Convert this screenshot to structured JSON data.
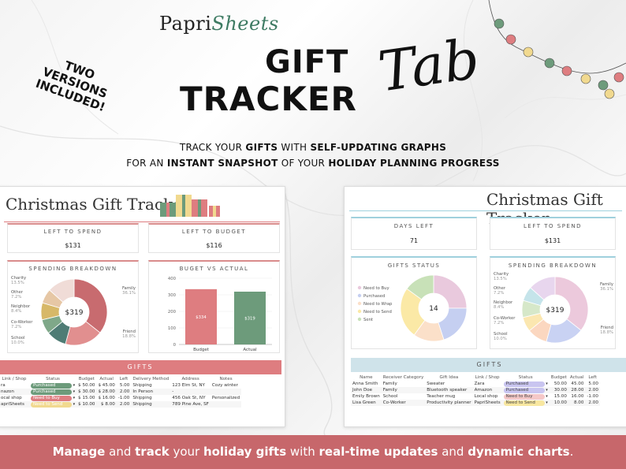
{
  "brand": {
    "part1": "Papri",
    "part2": "Sheets"
  },
  "hero": {
    "title_line1": "GIFT",
    "title_line2": "TRACKER",
    "title_script": "Tab",
    "badge": [
      "TWO",
      "VERSIONS",
      "INCLUDED!"
    ]
  },
  "subtitle": {
    "line1": [
      {
        "t": "TRACK YOUR ",
        "b": false
      },
      {
        "t": "GIFTS",
        "b": true
      },
      {
        "t": " WITH ",
        "b": false
      },
      {
        "t": "SELF-UPDATING GRAPHS",
        "b": true
      }
    ],
    "line2": [
      {
        "t": "FOR AN ",
        "b": false
      },
      {
        "t": "INSTANT SNAPSHOT",
        "b": true
      },
      {
        "t": " OF YOUR ",
        "b": false
      },
      {
        "t": "HOLIDAY PLANNING PROGRESS",
        "b": true
      }
    ]
  },
  "left": {
    "title": "Christmas Gift Tracker",
    "left_to_spend": {
      "label": "LEFT TO SPEND",
      "value": "$131"
    },
    "left_to_budget": {
      "label": "LEFT TO BUDGET",
      "value": "$116"
    },
    "spending": {
      "label": "SPENDING BREAKDOWN",
      "center": "$319"
    },
    "budget_actual": {
      "label": "BUGET VS ACTUAL"
    },
    "gifts_label": "GIFTS",
    "columns": [
      "Link / Shop",
      "Status",
      "Budget",
      "Actual",
      "Left",
      "Delivery Method",
      "Address",
      "Notes"
    ],
    "rows": [
      {
        "shop": "ra",
        "status": "Purchased",
        "budget": "50.00",
        "actual": "45.00",
        "left": "5.00",
        "method": "Shipping",
        "address": "123 Elm St, NY",
        "notes": "Cozy winter"
      },
      {
        "shop": "nazon",
        "status": "Purchased",
        "budget": "30.00",
        "actual": "28.00",
        "left": "2.00",
        "method": "In Person",
        "address": "-",
        "notes": ""
      },
      {
        "shop": "ocal shop",
        "status": "Need to Buy",
        "budget": "15.00",
        "actual": "16.00",
        "left": "-1.00",
        "method": "Shipping",
        "address": "456 Oak St, NY",
        "notes": "Personalized"
      },
      {
        "shop": "apriSheets",
        "status": "Need to Send",
        "budget": "10.00",
        "actual": "8.00",
        "left": "2.00",
        "method": "Shipping",
        "address": "789 Pine Ave, SF",
        "notes": ""
      }
    ]
  },
  "right": {
    "title": "Christmas Gift Tracker",
    "days_left": {
      "label": "DAYS LEFT",
      "value": "71"
    },
    "left_to_spend": {
      "label": "LEFT TO SPEND",
      "value": "$131"
    },
    "gifts_status": {
      "label": "GIFTS STATUS",
      "center": "14"
    },
    "spending": {
      "label": "SPENDING BREAKDOWN",
      "center": "$319"
    },
    "gifts_label": "GIFTS",
    "columns": [
      "Name",
      "Receiver Category",
      "Gift Idea",
      "Link / Shop",
      "Status",
      "Budget",
      "Actual",
      "Left"
    ],
    "rows": [
      {
        "name": "Anna Smith",
        "cat": "Family",
        "idea": "Sweater",
        "shop": "Zara",
        "status": "Purchased",
        "budget": "50.00",
        "actual": "45.00",
        "left": "5.00"
      },
      {
        "name": "John Doe",
        "cat": "Family",
        "idea": "Bluetooth speaker",
        "shop": "Amazon",
        "status": "Purchased",
        "budget": "30.00",
        "actual": "28.00",
        "left": "2.00"
      },
      {
        "name": "Emily Brown",
        "cat": "School",
        "idea": "Teacher mug",
        "shop": "Local shop",
        "status": "Need to Buy",
        "budget": "15.00",
        "actual": "16.00",
        "left": "-1.00"
      },
      {
        "name": "Lisa Green",
        "cat": "Co-Worker",
        "idea": "Productivity planner",
        "shop": "PapriSheets",
        "status": "Need to Send",
        "budget": "10.00",
        "actual": "8.00",
        "left": "2.00"
      }
    ]
  },
  "footer": [
    {
      "t": "Manage",
      "b": true
    },
    {
      "t": " and ",
      "b": false
    },
    {
      "t": "track",
      "b": true
    },
    {
      "t": " your ",
      "b": false
    },
    {
      "t": "holiday gifts",
      "b": true
    },
    {
      "t": " with ",
      "b": false
    },
    {
      "t": "real-time updates",
      "b": true
    },
    {
      "t": " and ",
      "b": false
    },
    {
      "t": "dynamic charts",
      "b": true
    },
    {
      "t": ".",
      "b": false
    }
  ],
  "chart_data": [
    {
      "type": "pie",
      "title": "SPENDING BREAKDOWN (warm)",
      "categories": [
        "Family",
        "Friend",
        "School",
        "Co-Worker",
        "Neighbor",
        "Other",
        "Charity"
      ],
      "values": [
        36.1,
        18.8,
        10.0,
        7.2,
        8.4,
        7.2,
        13.5
      ],
      "labels": [
        "36.1%",
        "18.8%",
        "10.0%",
        "7.2%",
        "8.4%",
        "7.2%",
        "13.5%"
      ],
      "colors": [
        "#c86b6f",
        "#e18f8f",
        "#4f7c75",
        "#7fa889",
        "#d7b868",
        "#e6c7a5",
        "#f0dcd7"
      ]
    },
    {
      "type": "bar",
      "title": "BUGET VS ACTUAL",
      "categories": [
        "Budget",
        "Actual"
      ],
      "values": [
        334,
        319
      ],
      "labels": [
        "$334",
        "$319"
      ],
      "ylim": [
        0,
        400
      ],
      "yticks": [
        0,
        100,
        200,
        300,
        400
      ],
      "colors": [
        "#de7d80",
        "#6d9b7b"
      ]
    },
    {
      "type": "pie",
      "title": "GIFTS STATUS",
      "categories": [
        "Need to Buy",
        "Purchased",
        "Need to Wrap",
        "Need to Send",
        "Sent"
      ],
      "values": [
        25,
        20,
        15,
        25,
        15
      ],
      "colors": [
        "#e9c9dd",
        "#c5cff1",
        "#fbe0c9",
        "#fbe9a6",
        "#c8e1b8"
      ]
    },
    {
      "type": "pie",
      "title": "SPENDING BREAKDOWN (pastel)",
      "categories": [
        "Family",
        "Friend",
        "School",
        "Co-Worker",
        "Neighbor",
        "Other",
        "Charity"
      ],
      "values": [
        36.1,
        18.8,
        10.0,
        7.2,
        8.4,
        7.2,
        13.5
      ],
      "labels": [
        "36.1%",
        "18.8%",
        "10.0%",
        "7.2%",
        "8.4%",
        "7.2%",
        "13.5%"
      ],
      "colors": [
        "#ecc9dc",
        "#c9d2f3",
        "#fbd7c0",
        "#fbe7b0",
        "#d6e8c9",
        "#c5e4ea",
        "#e8d6ee"
      ]
    }
  ],
  "colors": {
    "footer": "#c7676b",
    "accent_green": "#3e7b63",
    "left_bar": "#de7d80",
    "right_bar": "#cfe3ea"
  },
  "status_colors": {
    "Purchased": {
      "left": "#6d9b7b",
      "right": "#c9c5f0"
    },
    "Need to Buy": {
      "left": "#de7d80",
      "right": "#f5c8c8"
    },
    "Need to Send": {
      "left": "#f1d98f",
      "right": "#f8e7a0"
    }
  }
}
